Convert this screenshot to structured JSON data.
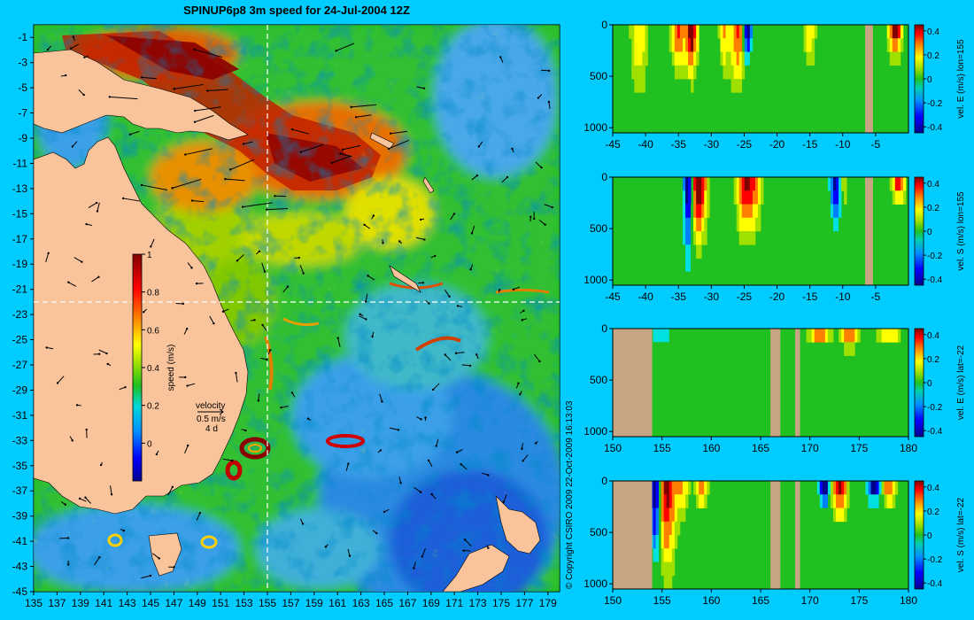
{
  "colors": {
    "background": "#00ccff",
    "land": "#f9c49c",
    "section_land": "#c8a582",
    "colormap": [
      "#00008f",
      "#0000ff",
      "#0080ff",
      "#00e0e0",
      "#20c020",
      "#a0e000",
      "#ffff00",
      "#ff8000",
      "#ff0000",
      "#800000"
    ]
  },
  "chart_data": [
    {
      "type": "heatmap",
      "title": "SPINUP6p8 3m speed for 24-Jul-2004 12Z",
      "x_ticks": [
        "135",
        "137",
        "139",
        "141",
        "143",
        "145",
        "147",
        "149",
        "151",
        "153",
        "155",
        "157",
        "159",
        "161",
        "163",
        "165",
        "167",
        "169",
        "171",
        "173",
        "175",
        "177",
        "179"
      ],
      "y_ticks": [
        "-1",
        "-3",
        "-5",
        "-7",
        "-9",
        "-11",
        "-13",
        "-15",
        "-17",
        "-19",
        "-21",
        "-23",
        "-25",
        "-27",
        "-29",
        "-31",
        "-33",
        "-35",
        "-37",
        "-39",
        "-41",
        "-43",
        "-45"
      ],
      "xlim": [
        135,
        180
      ],
      "ylim": [
        -45,
        0
      ],
      "crosshair": {
        "lon": 155,
        "lat": -22
      },
      "colorbar": {
        "label": "speed (m/s)",
        "ticks": [
          "1",
          "0.8",
          "0.6",
          "0.4",
          "0.2",
          "0"
        ],
        "range": [
          -0.2,
          1
        ]
      },
      "velocity_legend": {
        "title": "velocity",
        "speed": "0.5 m/s",
        "duration": "4 d"
      },
      "credit": "© Copyright CSIRO 2009   22-Oct-2009 16:13:03"
    },
    {
      "type": "heatmap",
      "x_ticks": [
        "-45",
        "-40",
        "-35",
        "-30",
        "-25",
        "-20",
        "-15",
        "-10",
        "-5"
      ],
      "y_ticks": [
        "0",
        "500",
        "1000"
      ],
      "xlim": [
        -45,
        0
      ],
      "ylim": [
        1050,
        0
      ],
      "colorbar": {
        "label": "vel. E (m/s) lon=155",
        "ticks": [
          "0.4",
          "0.2",
          "0",
          "-0.2",
          "-0.4"
        ],
        "range": [
          -0.45,
          0.45
        ]
      },
      "land_columns": [
        [
          -6.6,
          -5.4
        ]
      ],
      "features": [
        {
          "x": -33,
          "sign": 1,
          "w": 0.8,
          "depth": 380,
          "amp": 0.5
        },
        {
          "x": -35,
          "sign": 1,
          "w": 1.0,
          "depth": 350,
          "amp": 0.3
        },
        {
          "x": -26,
          "sign": 1,
          "w": 1.0,
          "depth": 500,
          "amp": 0.3
        },
        {
          "x": -24.5,
          "sign": -1,
          "w": 0.6,
          "depth": 320,
          "amp": 0.5
        },
        {
          "x": -28,
          "sign": 1,
          "w": 0.7,
          "depth": 400,
          "amp": 0.2
        },
        {
          "x": -15,
          "sign": 1,
          "w": 0.8,
          "depth": 400,
          "amp": 0.15
        },
        {
          "x": -2,
          "sign": 1,
          "w": 0.9,
          "depth": 250,
          "amp": 0.45
        },
        {
          "x": -41,
          "sign": 1,
          "w": 1.2,
          "depth": 600,
          "amp": 0.15
        }
      ]
    },
    {
      "type": "heatmap",
      "x_ticks": [
        "-45",
        "-40",
        "-35",
        "-30",
        "-25",
        "-20",
        "-15",
        "-10",
        "-5"
      ],
      "y_ticks": [
        "0",
        "500",
        "1000"
      ],
      "xlim": [
        -45,
        0
      ],
      "ylim": [
        1050,
        0
      ],
      "colorbar": {
        "label": "vel. S (m/s) lon=155",
        "ticks": [
          "0.4",
          "0.2",
          "0",
          "-0.2",
          "-0.4"
        ],
        "range": [
          -0.45,
          0.45
        ]
      },
      "land_columns": [
        [
          -6.6,
          -5.4
        ]
      ],
      "features": [
        {
          "x": -33.5,
          "sign": -1,
          "w": 0.7,
          "depth": 700,
          "amp": 0.5
        },
        {
          "x": -32,
          "sign": 1,
          "w": 1.2,
          "depth": 500,
          "amp": 0.45
        },
        {
          "x": -25,
          "sign": 1,
          "w": 1.0,
          "depth": 450,
          "amp": 0.35
        },
        {
          "x": -23.5,
          "sign": 1,
          "w": 1.0,
          "depth": 400,
          "amp": 0.3
        },
        {
          "x": -11,
          "sign": -1,
          "w": 0.9,
          "depth": 450,
          "amp": 0.4
        },
        {
          "x": -10,
          "sign": 1,
          "w": 0.6,
          "depth": 300,
          "amp": 0.2
        },
        {
          "x": -1.5,
          "sign": 1,
          "w": 0.8,
          "depth": 200,
          "amp": 0.4
        }
      ]
    },
    {
      "type": "heatmap",
      "x_ticks": [
        "150",
        "155",
        "160",
        "165",
        "170",
        "175",
        "180"
      ],
      "y_ticks": [
        "0",
        "500",
        "1000"
      ],
      "xlim": [
        150,
        180
      ],
      "ylim": [
        1050,
        0
      ],
      "colorbar": {
        "label": "vel. E (m/s) lat=-22",
        "ticks": [
          "0.4",
          "0.2",
          "0",
          "-0.2",
          "-0.4"
        ],
        "range": [
          -0.45,
          0.45
        ]
      },
      "land_columns": [
        [
          150,
          154
        ],
        [
          166,
          167
        ],
        [
          168.5,
          169
        ]
      ],
      "features": [
        {
          "x": 155,
          "sign": -1,
          "w": 1.0,
          "depth": 200,
          "amp": 0.2
        },
        {
          "x": 171,
          "sign": 1,
          "w": 1.0,
          "depth": 120,
          "amp": 0.3
        },
        {
          "x": 174,
          "sign": 1,
          "w": 0.8,
          "depth": 150,
          "amp": 0.3
        },
        {
          "x": 178,
          "sign": 1,
          "w": 1.0,
          "depth": 150,
          "amp": 0.2
        }
      ]
    },
    {
      "type": "heatmap",
      "x_ticks": [
        "150",
        "155",
        "160",
        "165",
        "170",
        "175",
        "180"
      ],
      "y_ticks": [
        "0",
        "500",
        "1000"
      ],
      "xlim": [
        150,
        180
      ],
      "ylim": [
        1050,
        0
      ],
      "colorbar": {
        "label": "vel. S (m/s) lat=-22",
        "ticks": [
          "0.4",
          "0.2",
          "0",
          "-0.2",
          "-0.4"
        ],
        "range": [
          -0.45,
          0.45
        ]
      },
      "land_columns": [
        [
          150,
          154
        ],
        [
          166,
          167
        ],
        [
          168.5,
          169
        ]
      ],
      "features": [
        {
          "x": 154.3,
          "sign": -1,
          "w": 0.5,
          "depth": 650,
          "amp": 0.5
        },
        {
          "x": 155.5,
          "sign": 1,
          "w": 0.8,
          "depth": 700,
          "amp": 0.4
        },
        {
          "x": 157,
          "sign": 1,
          "w": 0.7,
          "depth": 300,
          "amp": 0.2
        },
        {
          "x": 159,
          "sign": 1,
          "w": 0.6,
          "depth": 200,
          "amp": 0.25
        },
        {
          "x": 171.5,
          "sign": -1,
          "w": 0.5,
          "depth": 250,
          "amp": 0.5
        },
        {
          "x": 173,
          "sign": 1,
          "w": 0.7,
          "depth": 300,
          "amp": 0.4
        },
        {
          "x": 176.5,
          "sign": -1,
          "w": 0.6,
          "depth": 200,
          "amp": 0.45
        },
        {
          "x": 178,
          "sign": 1,
          "w": 0.6,
          "depth": 200,
          "amp": 0.3
        }
      ]
    }
  ]
}
